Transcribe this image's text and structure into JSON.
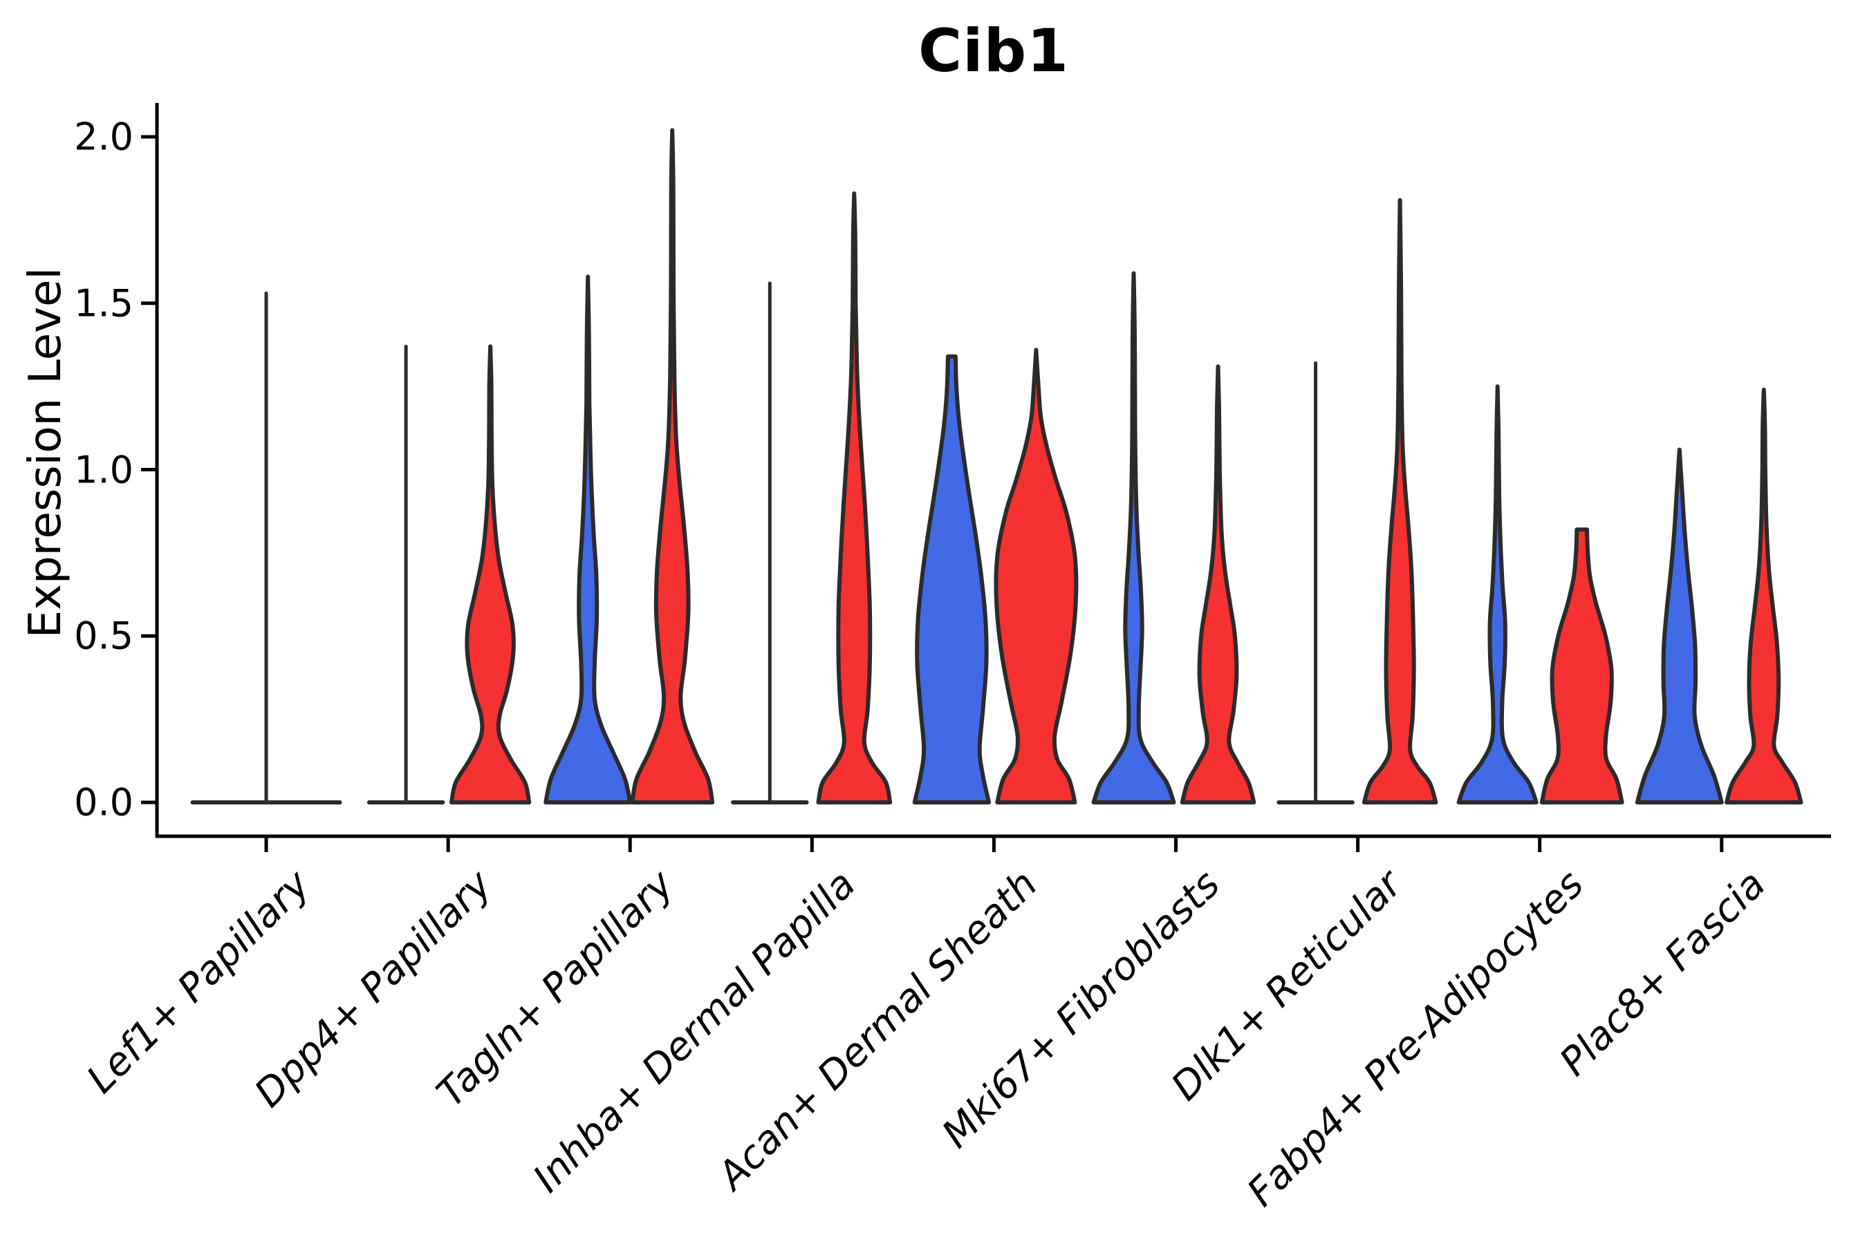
{
  "title": "Cib1",
  "y_axis": {
    "label": "Expression Level",
    "tick_labels": [
      "0.0",
      "0.5",
      "1.0",
      "1.5",
      "2.0"
    ],
    "tick_values": [
      0.0,
      0.5,
      1.0,
      1.5,
      2.0
    ]
  },
  "colors": {
    "blue": "#4269E6",
    "red": "#F53131",
    "outline": "#2B2B2B",
    "axis": "#000000"
  },
  "chart_data": {
    "type": "violin",
    "title": "Cib1",
    "xlabel": "",
    "ylabel": "Expression Level",
    "ylim": [
      -0.1,
      2.1
    ],
    "yticks": [
      0.0,
      0.5,
      1.0,
      1.5,
      2.0
    ],
    "grid": false,
    "legend": "none",
    "categories": [
      "Lef1+ Papillary",
      "Dpp4+ Papillary",
      "Tagln+ Papillary",
      "Inhba+ Dermal Papilla",
      "Acan+ Dermal Sheath",
      "Mki67+ Fibroblasts",
      "Dlk1+ Reticular",
      "Fabp4+ Pre-Adipocytes",
      "Plac8+ Fascia"
    ],
    "groups": [
      {
        "id": "blue",
        "color_key": "blue"
      },
      {
        "id": "red",
        "color_key": "red"
      }
    ],
    "violins": [
      {
        "category_index": 0,
        "group": "single",
        "style": "flat",
        "max": 1.53,
        "width_units": 0.9
      },
      {
        "category_index": 1,
        "group": "blue",
        "style": "flat",
        "max": 1.37,
        "width_units": 0.45
      },
      {
        "category_index": 1,
        "group": "red",
        "style": "density",
        "max": 1.37,
        "profile": [
          [
            0,
            0.92
          ],
          [
            0.06,
            0.82
          ],
          [
            0.13,
            0.48
          ],
          [
            0.2,
            0.22
          ],
          [
            0.26,
            0.22
          ],
          [
            0.34,
            0.4
          ],
          [
            0.44,
            0.54
          ],
          [
            0.53,
            0.53
          ],
          [
            0.63,
            0.36
          ],
          [
            0.73,
            0.2
          ],
          [
            0.83,
            0.11
          ],
          [
            0.95,
            0.05
          ],
          [
            1.1,
            0.03
          ],
          [
            1.25,
            0.025
          ],
          [
            1.37,
            0
          ]
        ]
      },
      {
        "category_index": 2,
        "group": "blue",
        "style": "density",
        "max": 1.58,
        "profile": [
          [
            0,
            1.0
          ],
          [
            0.07,
            0.88
          ],
          [
            0.15,
            0.6
          ],
          [
            0.23,
            0.32
          ],
          [
            0.31,
            0.16
          ],
          [
            0.42,
            0.16
          ],
          [
            0.55,
            0.21
          ],
          [
            0.68,
            0.2
          ],
          [
            0.8,
            0.14
          ],
          [
            0.93,
            0.09
          ],
          [
            1.05,
            0.06
          ],
          [
            1.2,
            0.035
          ],
          [
            1.4,
            0.025
          ],
          [
            1.58,
            0
          ]
        ]
      },
      {
        "category_index": 2,
        "group": "red",
        "style": "density",
        "max": 2.02,
        "profile": [
          [
            0,
            0.95
          ],
          [
            0.07,
            0.85
          ],
          [
            0.15,
            0.55
          ],
          [
            0.24,
            0.28
          ],
          [
            0.32,
            0.2
          ],
          [
            0.43,
            0.3
          ],
          [
            0.57,
            0.38
          ],
          [
            0.7,
            0.36
          ],
          [
            0.84,
            0.27
          ],
          [
            0.98,
            0.16
          ],
          [
            1.1,
            0.09
          ],
          [
            1.28,
            0.05
          ],
          [
            1.55,
            0.03
          ],
          [
            1.85,
            0.025
          ],
          [
            2.02,
            0
          ]
        ]
      },
      {
        "category_index": 3,
        "group": "blue",
        "style": "flat",
        "max": 1.56,
        "width_units": 0.45
      },
      {
        "category_index": 3,
        "group": "red",
        "style": "density",
        "max": 1.83,
        "profile": [
          [
            0,
            0.85
          ],
          [
            0.06,
            0.75
          ],
          [
            0.12,
            0.42
          ],
          [
            0.18,
            0.24
          ],
          [
            0.28,
            0.32
          ],
          [
            0.42,
            0.37
          ],
          [
            0.58,
            0.37
          ],
          [
            0.74,
            0.32
          ],
          [
            0.9,
            0.25
          ],
          [
            1.05,
            0.17
          ],
          [
            1.2,
            0.1
          ],
          [
            1.33,
            0.06
          ],
          [
            1.5,
            0.035
          ],
          [
            1.7,
            0.025
          ],
          [
            1.83,
            0
          ]
        ]
      },
      {
        "category_index": 4,
        "group": "blue",
        "style": "density",
        "max": 1.34,
        "profile": [
          [
            0,
            0.88
          ],
          [
            0.08,
            0.74
          ],
          [
            0.16,
            0.66
          ],
          [
            0.28,
            0.74
          ],
          [
            0.42,
            0.82
          ],
          [
            0.55,
            0.8
          ],
          [
            0.68,
            0.7
          ],
          [
            0.8,
            0.57
          ],
          [
            0.92,
            0.42
          ],
          [
            1.04,
            0.28
          ],
          [
            1.15,
            0.17
          ],
          [
            1.25,
            0.11
          ],
          [
            1.34,
            0.09
          ]
        ]
      },
      {
        "category_index": 4,
        "group": "red",
        "style": "density",
        "max": 1.36,
        "profile": [
          [
            0,
            0.92
          ],
          [
            0.07,
            0.78
          ],
          [
            0.13,
            0.5
          ],
          [
            0.2,
            0.44
          ],
          [
            0.3,
            0.6
          ],
          [
            0.45,
            0.82
          ],
          [
            0.6,
            0.94
          ],
          [
            0.74,
            0.92
          ],
          [
            0.87,
            0.72
          ],
          [
            0.97,
            0.47
          ],
          [
            1.07,
            0.25
          ],
          [
            1.16,
            0.11
          ],
          [
            1.26,
            0.05
          ],
          [
            1.36,
            0
          ]
        ]
      },
      {
        "category_index": 5,
        "group": "blue",
        "style": "density",
        "max": 1.59,
        "profile": [
          [
            0,
            0.95
          ],
          [
            0.06,
            0.78
          ],
          [
            0.12,
            0.45
          ],
          [
            0.19,
            0.16
          ],
          [
            0.28,
            0.12
          ],
          [
            0.4,
            0.16
          ],
          [
            0.52,
            0.2
          ],
          [
            0.64,
            0.17
          ],
          [
            0.76,
            0.11
          ],
          [
            0.9,
            0.06
          ],
          [
            1.1,
            0.035
          ],
          [
            1.4,
            0.025
          ],
          [
            1.59,
            0
          ]
        ]
      },
      {
        "category_index": 5,
        "group": "red",
        "style": "density",
        "max": 1.31,
        "profile": [
          [
            0,
            0.85
          ],
          [
            0.06,
            0.72
          ],
          [
            0.12,
            0.46
          ],
          [
            0.18,
            0.26
          ],
          [
            0.27,
            0.36
          ],
          [
            0.38,
            0.44
          ],
          [
            0.5,
            0.4
          ],
          [
            0.6,
            0.28
          ],
          [
            0.7,
            0.16
          ],
          [
            0.82,
            0.08
          ],
          [
            1.0,
            0.04
          ],
          [
            1.18,
            0.025
          ],
          [
            1.31,
            0
          ]
        ]
      },
      {
        "category_index": 6,
        "group": "blue",
        "style": "flat",
        "max": 1.32,
        "width_units": 0.45
      },
      {
        "category_index": 6,
        "group": "red",
        "style": "density",
        "max": 1.81,
        "profile": [
          [
            0,
            0.85
          ],
          [
            0.06,
            0.7
          ],
          [
            0.11,
            0.4
          ],
          [
            0.16,
            0.24
          ],
          [
            0.26,
            0.3
          ],
          [
            0.4,
            0.33
          ],
          [
            0.55,
            0.31
          ],
          [
            0.7,
            0.27
          ],
          [
            0.83,
            0.2
          ],
          [
            0.95,
            0.12
          ],
          [
            1.08,
            0.06
          ],
          [
            1.28,
            0.035
          ],
          [
            1.55,
            0.025
          ],
          [
            1.81,
            0
          ]
        ]
      },
      {
        "category_index": 7,
        "group": "blue",
        "style": "density",
        "max": 1.25,
        "profile": [
          [
            0,
            0.92
          ],
          [
            0.06,
            0.74
          ],
          [
            0.12,
            0.38
          ],
          [
            0.19,
            0.13
          ],
          [
            0.3,
            0.11
          ],
          [
            0.42,
            0.17
          ],
          [
            0.54,
            0.18
          ],
          [
            0.65,
            0.12
          ],
          [
            0.78,
            0.07
          ],
          [
            0.92,
            0.04
          ],
          [
            1.1,
            0.025
          ],
          [
            1.25,
            0
          ]
        ]
      },
      {
        "category_index": 7,
        "group": "red",
        "style": "density",
        "max": 0.82,
        "profile": [
          [
            0,
            0.95
          ],
          [
            0.07,
            0.82
          ],
          [
            0.13,
            0.58
          ],
          [
            0.2,
            0.57
          ],
          [
            0.3,
            0.68
          ],
          [
            0.4,
            0.7
          ],
          [
            0.5,
            0.56
          ],
          [
            0.6,
            0.33
          ],
          [
            0.68,
            0.19
          ],
          [
            0.75,
            0.14
          ],
          [
            0.82,
            0.12
          ]
        ]
      },
      {
        "category_index": 8,
        "group": "blue",
        "style": "density",
        "max": 1.06,
        "profile": [
          [
            0,
            1.0
          ],
          [
            0.08,
            0.82
          ],
          [
            0.17,
            0.52
          ],
          [
            0.26,
            0.36
          ],
          [
            0.36,
            0.38
          ],
          [
            0.47,
            0.37
          ],
          [
            0.58,
            0.3
          ],
          [
            0.7,
            0.2
          ],
          [
            0.82,
            0.12
          ],
          [
            0.94,
            0.06
          ],
          [
            1.06,
            0
          ]
        ]
      },
      {
        "category_index": 8,
        "group": "red",
        "style": "density",
        "max": 1.24,
        "profile": [
          [
            0,
            0.88
          ],
          [
            0.06,
            0.74
          ],
          [
            0.12,
            0.44
          ],
          [
            0.17,
            0.24
          ],
          [
            0.26,
            0.32
          ],
          [
            0.37,
            0.35
          ],
          [
            0.48,
            0.31
          ],
          [
            0.58,
            0.22
          ],
          [
            0.7,
            0.12
          ],
          [
            0.84,
            0.06
          ],
          [
            1.0,
            0.035
          ],
          [
            1.14,
            0.025
          ],
          [
            1.24,
            0
          ]
        ]
      }
    ]
  }
}
